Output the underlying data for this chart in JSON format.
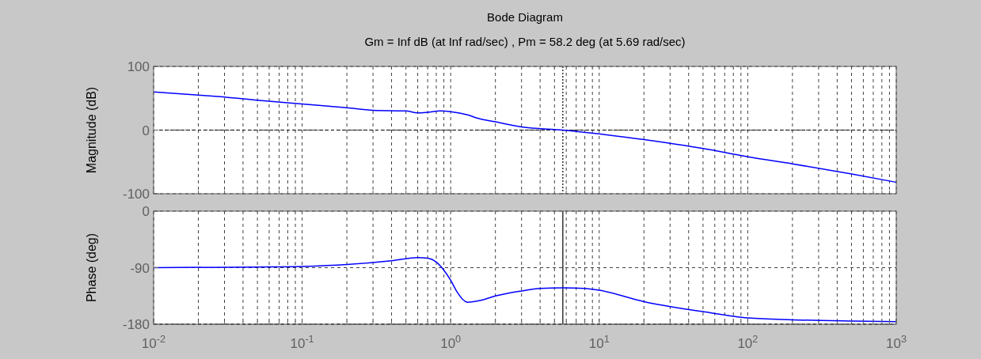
{
  "chart_data": [
    {
      "type": "line",
      "title": "Bode Diagram",
      "subtitle": "Gm = Inf dB (at Inf rad/sec) ,  Pm = 58.2 deg (at 5.69 rad/sec)",
      "ylabel": "Magnitude (dB)",
      "log": "x",
      "grid": true,
      "tick_labels": "y",
      "line_style": "solid",
      "xlim": [
        0.01,
        1000
      ],
      "ylim": [
        -100,
        100
      ],
      "yticks": [
        -100,
        0,
        100
      ],
      "xticks": [
        {
          "value": 0.01,
          "label": null
        },
        {
          "value": 0.02,
          "label": null
        },
        {
          "value": 0.03,
          "label": null
        },
        {
          "value": 0.04,
          "label": null
        },
        {
          "value": 0.05,
          "label": null
        },
        {
          "value": 0.06,
          "label": null
        },
        {
          "value": 0.07,
          "label": null
        },
        {
          "value": 0.08,
          "label": null
        },
        {
          "value": 0.09,
          "label": null
        },
        {
          "value": 0.1,
          "label": null
        },
        {
          "value": 0.2,
          "label": null
        },
        {
          "value": 0.3,
          "label": null
        },
        {
          "value": 0.4,
          "label": null
        },
        {
          "value": 0.5,
          "label": null
        },
        {
          "value": 0.6,
          "label": null
        },
        {
          "value": 0.7,
          "label": null
        },
        {
          "value": 0.8,
          "label": null
        },
        {
          "value": 0.9,
          "label": null
        },
        {
          "value": 1,
          "label": null
        },
        {
          "value": 2,
          "label": null
        },
        {
          "value": 3,
          "label": null
        },
        {
          "value": 4,
          "label": null
        },
        {
          "value": 5,
          "label": null
        },
        {
          "value": 6,
          "label": null
        },
        {
          "value": 7,
          "label": null
        },
        {
          "value": 8,
          "label": null
        },
        {
          "value": 9,
          "label": null
        },
        {
          "value": 10,
          "label": null
        },
        {
          "value": 20,
          "label": null
        },
        {
          "value": 30,
          "label": null
        },
        {
          "value": 40,
          "label": null
        },
        {
          "value": 50,
          "label": null
        },
        {
          "value": 60,
          "label": null
        },
        {
          "value": 70,
          "label": null
        },
        {
          "value": 80,
          "label": null
        },
        {
          "value": 90,
          "label": null
        },
        {
          "value": 100,
          "label": null
        },
        {
          "value": 200,
          "label": null
        },
        {
          "value": 300,
          "label": null
        },
        {
          "value": 400,
          "label": null
        },
        {
          "value": 500,
          "label": null
        },
        {
          "value": 600,
          "label": null
        },
        {
          "value": 700,
          "label": null
        },
        {
          "value": 800,
          "label": null
        },
        {
          "value": 900,
          "label": null
        },
        {
          "value": 1000,
          "label": null
        }
      ],
      "ref_lines": [
        {
          "axis": "y",
          "value": 0,
          "color": "#000000",
          "line_style": "dashed"
        },
        {
          "axis": "x",
          "value": 5.69,
          "color": "#000000",
          "line_style": "dotted"
        }
      ],
      "series": [
        {
          "color": "#0000ff",
          "x": [
            0.01,
            0.02,
            0.03,
            0.05,
            0.1,
            0.2,
            0.3,
            0.5,
            0.6,
            0.7,
            0.85,
            1,
            1.3,
            1.5,
            2,
            3,
            5.69,
            10,
            20,
            50,
            100,
            200,
            500,
            1000
          ],
          "values": [
            60,
            55,
            52,
            47,
            41,
            35,
            31,
            30,
            27,
            28,
            30,
            29,
            24,
            19,
            13,
            5,
            0,
            -6,
            -15,
            -29,
            -42,
            -53,
            -69,
            -82
          ]
        }
      ]
    },
    {
      "type": "line",
      "ylabel": "Phase (deg)",
      "log": "x",
      "grid": true,
      "line_style": "solid",
      "xlim": [
        0.01,
        1000
      ],
      "ylim": [
        -180,
        0
      ],
      "yticks": [
        -180,
        -90,
        0
      ],
      "xticks": [
        {
          "value": 0.01,
          "label": "10$^{-2}$"
        },
        {
          "value": 0.02,
          "label": null
        },
        {
          "value": 0.03,
          "label": null
        },
        {
          "value": 0.04,
          "label": null
        },
        {
          "value": 0.05,
          "label": null
        },
        {
          "value": 0.06,
          "label": null
        },
        {
          "value": 0.07,
          "label": null
        },
        {
          "value": 0.08,
          "label": null
        },
        {
          "value": 0.09,
          "label": null
        },
        {
          "value": 0.1,
          "label": "10$^{-1}$"
        },
        {
          "value": 0.2,
          "label": null
        },
        {
          "value": 0.3,
          "label": null
        },
        {
          "value": 0.4,
          "label": null
        },
        {
          "value": 0.5,
          "label": null
        },
        {
          "value": 0.6,
          "label": null
        },
        {
          "value": 0.7,
          "label": null
        },
        {
          "value": 0.8,
          "label": null
        },
        {
          "value": 0.9,
          "label": null
        },
        {
          "value": 1,
          "label": "10$^{0}$"
        },
        {
          "value": 2,
          "label": null
        },
        {
          "value": 3,
          "label": null
        },
        {
          "value": 4,
          "label": null
        },
        {
          "value": 5,
          "label": null
        },
        {
          "value": 6,
          "label": null
        },
        {
          "value": 7,
          "label": null
        },
        {
          "value": 8,
          "label": null
        },
        {
          "value": 9,
          "label": null
        },
        {
          "value": 10,
          "label": "10$^{1}$"
        },
        {
          "value": 20,
          "label": null
        },
        {
          "value": 30,
          "label": null
        },
        {
          "value": 40,
          "label": null
        },
        {
          "value": 50,
          "label": null
        },
        {
          "value": 60,
          "label": null
        },
        {
          "value": 70,
          "label": null
        },
        {
          "value": 80,
          "label": null
        },
        {
          "value": 90,
          "label": null
        },
        {
          "value": 100,
          "label": "10$^{2}$"
        },
        {
          "value": 200,
          "label": null
        },
        {
          "value": 300,
          "label": null
        },
        {
          "value": 400,
          "label": null
        },
        {
          "value": 500,
          "label": null
        },
        {
          "value": 600,
          "label": null
        },
        {
          "value": 700,
          "label": null
        },
        {
          "value": 800,
          "label": null
        },
        {
          "value": 900,
          "label": null
        },
        {
          "value": 1000,
          "label": "10$^{3}$"
        }
      ],
      "ref_lines": [
        {
          "axis": "y",
          "value": -180,
          "color": "#000000",
          "line_style": "dashed"
        },
        {
          "axis": "x",
          "value": 5.69,
          "color": "#000000",
          "line_style": "solid"
        }
      ],
      "series": [
        {
          "color": "#0000ff",
          "x": [
            0.01,
            0.05,
            0.1,
            0.2,
            0.4,
            0.6,
            0.7,
            0.8,
            0.9,
            1,
            1.1,
            1.2,
            1.3,
            1.6,
            2,
            3,
            4,
            5.69,
            8,
            10,
            20,
            50,
            100,
            200,
            500,
            1000
          ],
          "values": [
            -90,
            -89,
            -88,
            -85,
            -79,
            -74,
            -75,
            -81,
            -94,
            -110,
            -128,
            -140,
            -145,
            -142,
            -135,
            -127,
            -123,
            -122,
            -123,
            -126,
            -144,
            -160,
            -170,
            -173,
            -175,
            -176
          ]
        }
      ]
    }
  ]
}
